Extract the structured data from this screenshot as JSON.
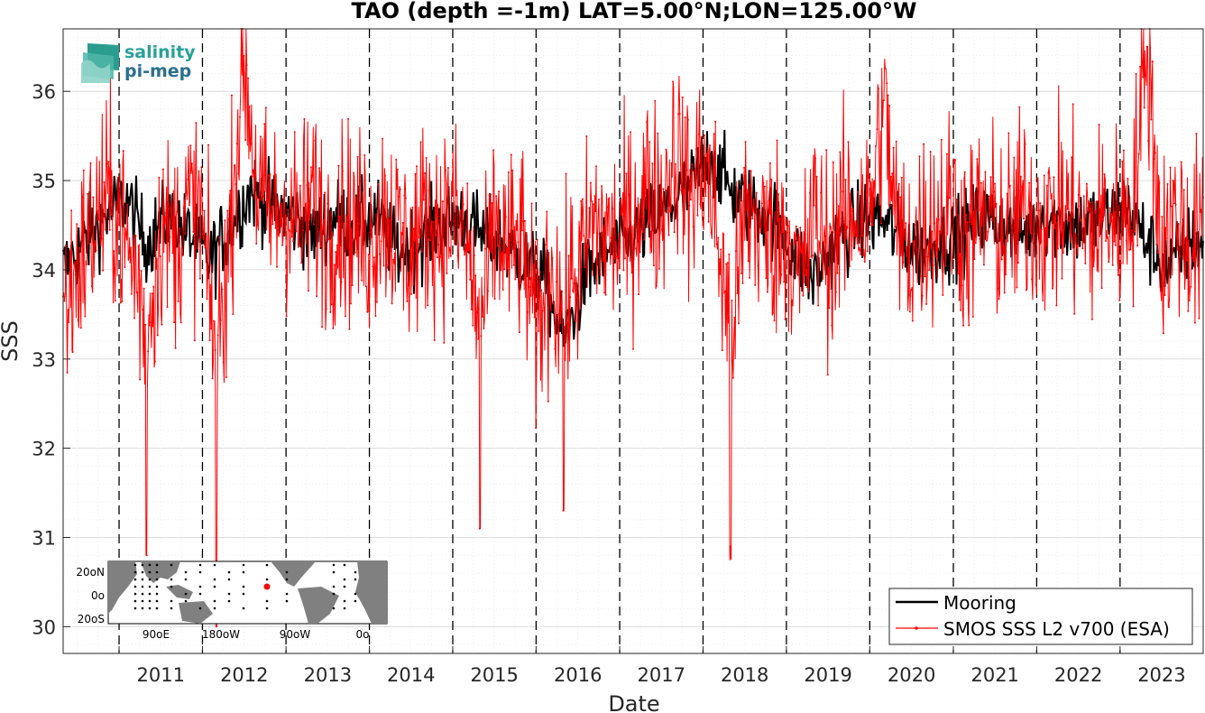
{
  "chart_data": {
    "type": "line",
    "title": "TAO (depth =-1m) LAT=5.00°N;LON=125.00°W",
    "xlabel": "Date",
    "ylabel": "SSS",
    "xlim": [
      "2010-05-01",
      "2023-12-31"
    ],
    "ylim": [
      29.7,
      36.7
    ],
    "x_ticks": [
      "2011",
      "2012",
      "2013",
      "2014",
      "2015",
      "2016",
      "2017",
      "2018",
      "2019",
      "2020",
      "2021",
      "2022",
      "2023"
    ],
    "y_ticks": [
      30,
      31,
      32,
      33,
      34,
      35,
      36
    ],
    "grid": true,
    "legend_position": "bottom-right",
    "series": [
      {
        "name": "Mooring",
        "color": "#000000",
        "style": "solid",
        "x": [
          "2010-05-01",
          "2010-08-01",
          "2010-11-01",
          "2011-02-01",
          "2011-05-01",
          "2011-08-01",
          "2011-11-01",
          "2012-02-01",
          "2012-05-01",
          "2012-08-01",
          "2012-11-01",
          "2013-02-01",
          "2013-05-01",
          "2013-08-01",
          "2013-11-01",
          "2014-02-01",
          "2014-05-01",
          "2014-08-01",
          "2014-11-01",
          "2015-02-01",
          "2015-05-01",
          "2015-08-01",
          "2015-11-01",
          "2016-02-01",
          "2016-05-01",
          "2016-08-01",
          "2016-11-01",
          "2017-02-01",
          "2017-05-01",
          "2017-08-01",
          "2017-11-01",
          "2018-02-01",
          "2018-05-01",
          "2018-08-01",
          "2018-11-01",
          "2019-02-01",
          "2019-05-01",
          "2019-08-01",
          "2019-11-01",
          "2020-02-01",
          "2020-05-01",
          "2020-08-01",
          "2020-11-01",
          "2021-02-01",
          "2021-05-01",
          "2021-08-01",
          "2021-11-01",
          "2022-02-01",
          "2022-05-01",
          "2022-08-01",
          "2022-11-01",
          "2023-02-01",
          "2023-05-01",
          "2023-08-01",
          "2023-11-01"
        ],
        "y": [
          34.0,
          34.3,
          34.6,
          34.8,
          34.3,
          34.6,
          34.4,
          34.1,
          34.5,
          34.9,
          34.7,
          34.6,
          34.4,
          34.6,
          34.5,
          34.6,
          34.2,
          34.3,
          34.5,
          34.6,
          34.4,
          34.3,
          34.1,
          33.9,
          33.2,
          33.9,
          34.2,
          34.3,
          34.5,
          34.7,
          34.9,
          35.3,
          34.9,
          34.7,
          34.6,
          34.2,
          33.9,
          34.3,
          34.5,
          34.6,
          34.4,
          34.2,
          34.3,
          34.4,
          34.6,
          34.5,
          34.4,
          34.6,
          34.5,
          34.5,
          34.6,
          34.7,
          34.3,
          34.0,
          34.3
        ]
      },
      {
        "name": "SMOS SSS L2 v700 (ESA)",
        "color": "#ff0000",
        "style": "line with point markers",
        "x": [
          "2010-05-01",
          "2010-07-01",
          "2010-09-01",
          "2010-11-01",
          "2011-01-01",
          "2011-03-01",
          "2011-05-01",
          "2011-07-01",
          "2011-09-01",
          "2011-11-01",
          "2012-01-01",
          "2012-03-01",
          "2012-05-01",
          "2012-07-01",
          "2012-09-01",
          "2012-11-01",
          "2013-01-01",
          "2013-03-01",
          "2013-05-01",
          "2013-07-01",
          "2013-09-01",
          "2013-11-01",
          "2014-01-01",
          "2014-03-01",
          "2014-05-01",
          "2014-07-01",
          "2014-09-01",
          "2014-11-01",
          "2015-01-01",
          "2015-03-01",
          "2015-05-01",
          "2015-07-01",
          "2015-09-01",
          "2015-11-01",
          "2016-01-01",
          "2016-03-01",
          "2016-05-01",
          "2016-07-01",
          "2016-09-01",
          "2016-11-01",
          "2017-01-01",
          "2017-03-01",
          "2017-05-01",
          "2017-07-01",
          "2017-09-01",
          "2017-11-01",
          "2018-01-01",
          "2018-03-01",
          "2018-05-01",
          "2018-07-01",
          "2018-09-01",
          "2018-11-01",
          "2019-01-01",
          "2019-03-01",
          "2019-05-01",
          "2019-07-01",
          "2019-09-01",
          "2019-11-01",
          "2020-01-01",
          "2020-03-01",
          "2020-05-01",
          "2020-07-01",
          "2020-09-01",
          "2020-11-01",
          "2021-01-01",
          "2021-03-01",
          "2021-05-01",
          "2021-07-01",
          "2021-09-01",
          "2021-11-01",
          "2022-01-01",
          "2022-03-01",
          "2022-05-01",
          "2022-07-01",
          "2022-09-01",
          "2022-11-01",
          "2023-01-01",
          "2023-03-01",
          "2023-05-01",
          "2023-07-01",
          "2023-09-01",
          "2023-11-01"
        ],
        "y": [
          33.5,
          34.0,
          34.4,
          34.8,
          34.6,
          34.0,
          30.8,
          34.5,
          34.3,
          34.7,
          34.6,
          30.0,
          34.5,
          36.4,
          34.8,
          34.6,
          34.7,
          34.5,
          34.8,
          34.4,
          34.6,
          34.5,
          34.3,
          34.7,
          34.4,
          34.2,
          34.6,
          34.5,
          34.6,
          34.3,
          31.1,
          34.5,
          34.2,
          34.3,
          33.2,
          34.0,
          31.3,
          33.9,
          34.5,
          34.4,
          34.3,
          34.6,
          34.9,
          34.7,
          35.4,
          34.8,
          35.2,
          34.6,
          30.9,
          34.7,
          34.5,
          34.3,
          34.5,
          33.8,
          34.6,
          34.2,
          34.5,
          34.7,
          34.6,
          35.9,
          34.4,
          34.2,
          34.5,
          34.6,
          34.7,
          34.3,
          34.6,
          34.5,
          34.4,
          34.7,
          34.6,
          34.5,
          34.7,
          34.5,
          34.4,
          34.6,
          34.5,
          34.8,
          36.5,
          34.2,
          34.6,
          34.3
        ]
      }
    ]
  },
  "logo": {
    "line1": "salinity",
    "line2": "pi-mep"
  },
  "inset_map": {
    "lat_labels": [
      "20oN",
      "0o",
      "20oS"
    ],
    "lon_labels": [
      "90oE",
      "180oW",
      "90oW",
      "0o"
    ],
    "land_color": "#808080",
    "marker_color": "#ff0000"
  }
}
